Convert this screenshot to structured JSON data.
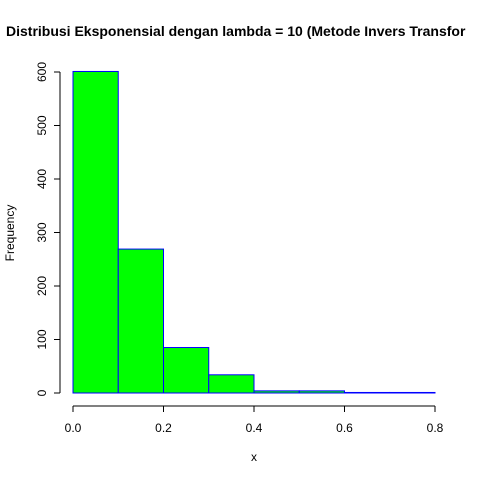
{
  "chart_data": {
    "type": "bar",
    "title": "Distribusi Eksponensial dengan lambda = 10 (Metode Invers Transfor",
    "xlabel": "x",
    "ylabel": "Frequency",
    "bins": [
      {
        "from": 0.0,
        "to": 0.1,
        "count": 601
      },
      {
        "from": 0.1,
        "to": 0.2,
        "count": 269
      },
      {
        "from": 0.2,
        "to": 0.3,
        "count": 85
      },
      {
        "from": 0.3,
        "to": 0.4,
        "count": 34
      },
      {
        "from": 0.4,
        "to": 0.5,
        "count": 4
      },
      {
        "from": 0.5,
        "to": 0.6,
        "count": 4
      },
      {
        "from": 0.6,
        "to": 0.7,
        "count": 1
      },
      {
        "from": 0.7,
        "to": 0.8,
        "count": 1
      }
    ],
    "xlim": [
      0.0,
      0.8
    ],
    "ylim": [
      0,
      600
    ],
    "x_ticks": [
      "0.0",
      "0.2",
      "0.4",
      "0.6",
      "0.8"
    ],
    "y_ticks": [
      "0",
      "100",
      "200",
      "300",
      "400",
      "500",
      "600"
    ],
    "bar_fill": "#00ff00",
    "bar_border": "#0000ff",
    "grid": false,
    "legend": "none"
  }
}
